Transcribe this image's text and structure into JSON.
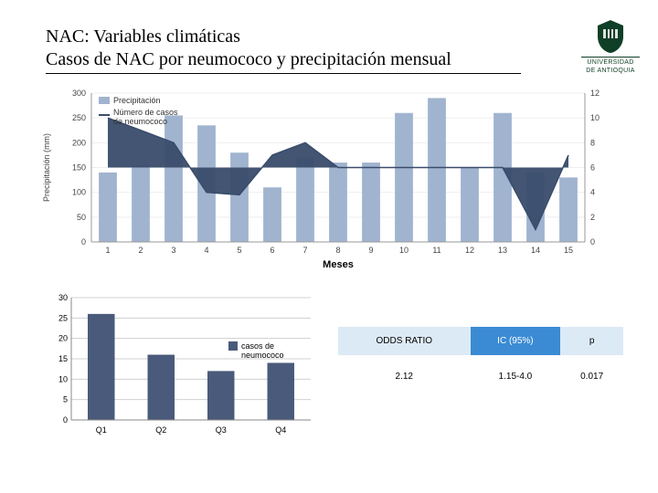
{
  "title_line1": "NAC: Variables climáticas",
  "title_line2": "Casos de NAC por neumococo y precipitación mensual",
  "logo": {
    "line1": "UNIVERSIDAD",
    "line2": "DE ANTIOQUIA",
    "shield_color": "#0f3f26"
  },
  "top_chart": {
    "type": "combo-bar-line",
    "x_labels": [
      "1",
      "2",
      "3",
      "4",
      "5",
      "6",
      "7",
      "8",
      "9",
      "10",
      "11",
      "12",
      "13",
      "14",
      "15"
    ],
    "x_title": "Meses",
    "left_axis": {
      "label": "Precipitación (mm)",
      "ticks": [
        0,
        50,
        100,
        150,
        200,
        250,
        300
      ],
      "ylim": [
        0,
        300
      ]
    },
    "right_axis": {
      "ticks": [
        0,
        2,
        4,
        6,
        8,
        10,
        12
      ],
      "ylim": [
        0,
        12
      ]
    },
    "legend": [
      {
        "label": "Precipitación",
        "swatch": "#a1b4cf",
        "kind": "box"
      },
      {
        "label": "Número de casos de neumococo",
        "swatch": "#394c6b",
        "kind": "line"
      }
    ],
    "bars": {
      "color": "#a1b4cf",
      "values": [
        140,
        155,
        255,
        235,
        180,
        110,
        170,
        160,
        160,
        260,
        290,
        150,
        260,
        140,
        130
      ]
    },
    "line": {
      "color": "#394c6b",
      "fill": "#394c6b",
      "fill_opacity": 0.95,
      "values": [
        10,
        9,
        8,
        4,
        3.8,
        7,
        8,
        6,
        6,
        6,
        6,
        6,
        6,
        1,
        7
      ]
    },
    "grid_color": "#eeeeee",
    "background_color": "#ffffff"
  },
  "bottom_chart": {
    "type": "bar",
    "categories": [
      "Q1",
      "Q2",
      "Q3",
      "Q4"
    ],
    "values": [
      26,
      16,
      12,
      14
    ],
    "bar_color": "#4a5a7a",
    "yticks": [
      0,
      5,
      10,
      15,
      20,
      25,
      30
    ],
    "ylim": [
      0,
      30
    ],
    "grid_color": "#d0d0d0",
    "axis_color": "#888888",
    "legend_label": "casos de neumococo",
    "legend_swatch": "#4a5a7a",
    "tick_fontsize": 9
  },
  "stats": {
    "headers": [
      "ODDS RATIO",
      "IC (95%)",
      "p"
    ],
    "row": [
      "2.12",
      "1.15-4.0",
      "0.017"
    ],
    "header_blue": "#3b8bd4",
    "header_pale": "#dceaf6"
  }
}
